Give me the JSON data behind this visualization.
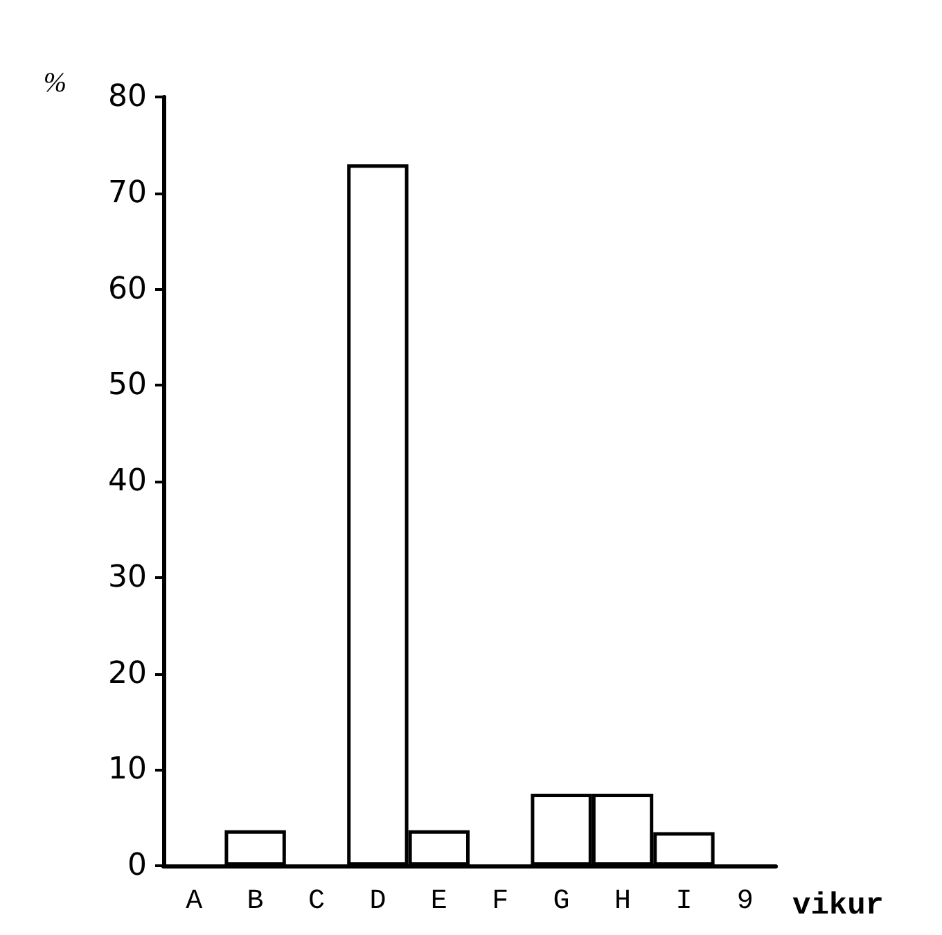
{
  "chart_data": {
    "type": "bar",
    "xlabel": "vikur",
    "ylabel": "%",
    "categories": [
      "A",
      "B",
      "C",
      "D",
      "E",
      "F",
      "G",
      "H",
      "I",
      "9"
    ],
    "values": [
      0,
      3.7,
      0,
      73,
      3.7,
      0,
      7.5,
      7.5,
      3.5,
      0
    ],
    "color": "#ffffff",
    "ylim": [
      0,
      80
    ],
    "yticks": [
      0,
      10,
      20,
      30,
      40,
      50,
      60,
      70,
      80
    ],
    "grid": false
  }
}
